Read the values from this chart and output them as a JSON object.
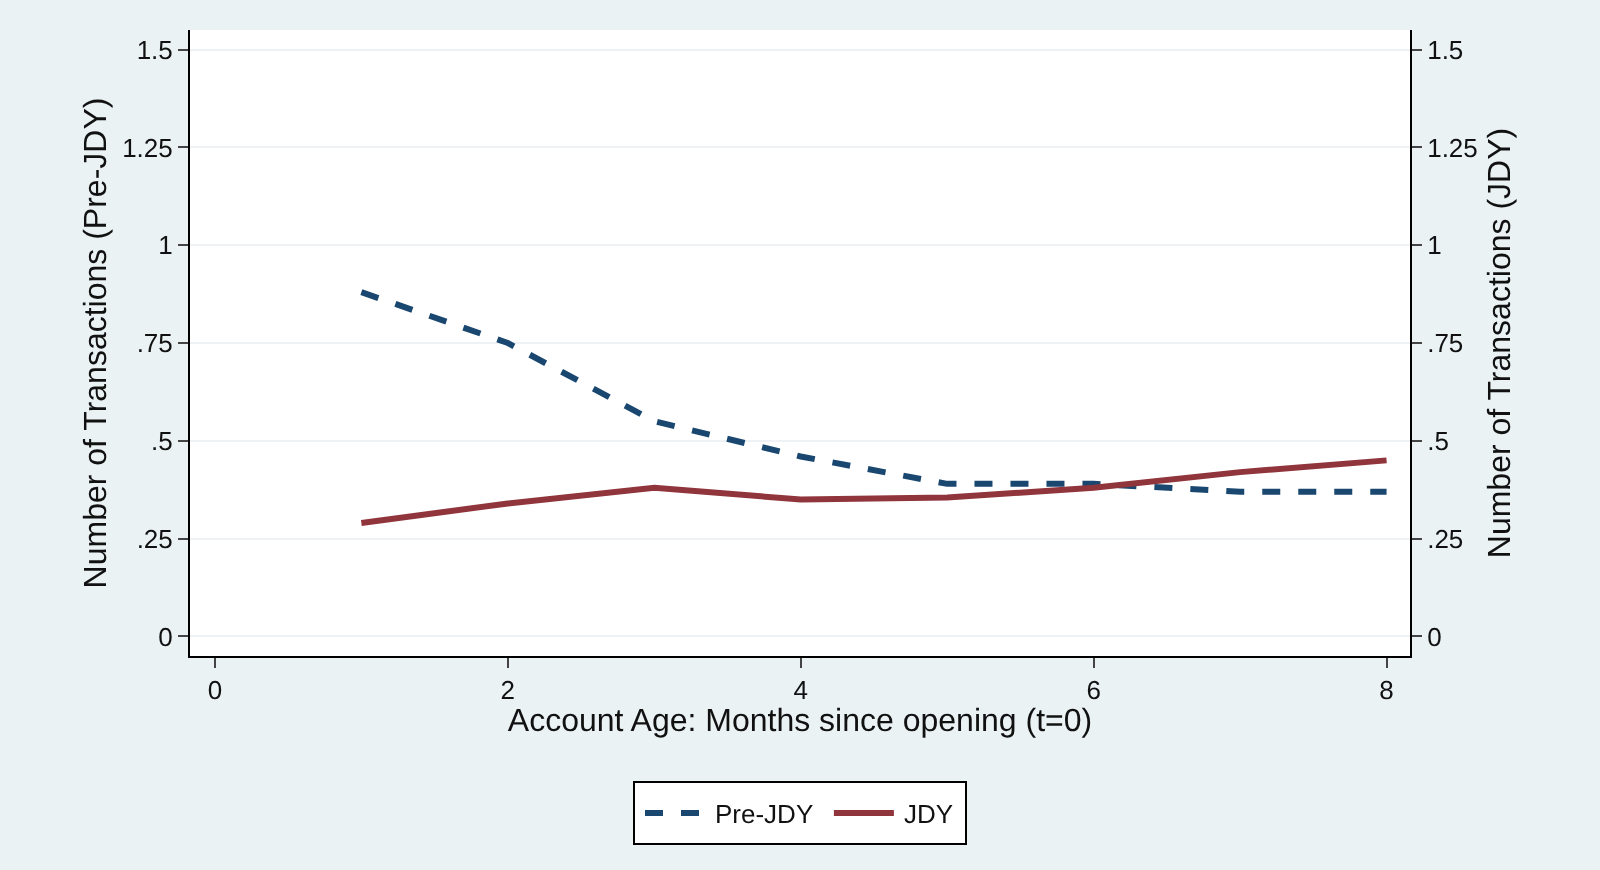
{
  "chart_data": {
    "type": "line",
    "xlabel": "Account Age: Months since opening (t=0)",
    "ylabel": "Number of Transactions (Pre-JDY)",
    "y2label": "Number of Transactions (JDY)",
    "x": [
      1,
      2,
      3,
      4,
      5,
      6,
      7,
      8
    ],
    "series": [
      {
        "name": "Pre-JDY",
        "color": "#1a476f",
        "line_style": "dashed",
        "values": [
          0.88,
          0.75,
          0.55,
          0.46,
          0.39,
          0.39,
          0.37,
          0.37
        ]
      },
      {
        "name": "JDY",
        "color": "#90353b",
        "line_style": "solid",
        "axis": "y2",
        "values": [
          0.29,
          0.34,
          0.38,
          0.35,
          0.355,
          0.38,
          0.42,
          0.45
        ]
      }
    ],
    "xlim": [
      -0.17,
      8.16
    ],
    "xticks": [
      0,
      2,
      4,
      6,
      8
    ],
    "ylim": [
      -0.05,
      1.55
    ],
    "yticks": [
      0,
      {
        "value": 0.25,
        "label": ".25"
      },
      {
        "value": 0.5,
        "label": ".5"
      },
      {
        "value": 0.75,
        "label": ".75"
      },
      1,
      {
        "value": 1.25,
        "label": "1.25"
      },
      {
        "value": 1.5,
        "label": "1.5"
      }
    ],
    "y2lim": [
      -0.05,
      1.55
    ],
    "y2ticks": [
      0,
      {
        "value": 0.25,
        "label": ".25"
      },
      {
        "value": 0.5,
        "label": ".5"
      },
      {
        "value": 0.75,
        "label": ".75"
      },
      1,
      {
        "value": 1.25,
        "label": "1.25"
      },
      {
        "value": 1.5,
        "label": "1.5"
      }
    ],
    "grid": "y",
    "legend": "bottom",
    "marker": "none"
  }
}
